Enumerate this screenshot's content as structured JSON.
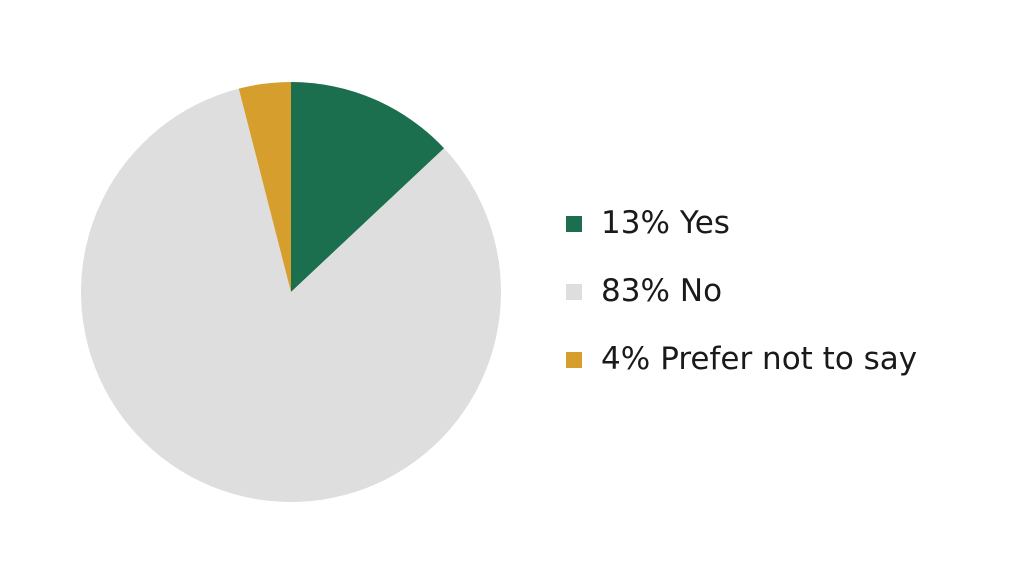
{
  "chart_data": {
    "type": "pie",
    "categories": [
      "Yes",
      "No",
      "Prefer not to say"
    ],
    "values": [
      13,
      83,
      4
    ],
    "value_labels": [
      "13%",
      "83%",
      "4%"
    ],
    "colors": [
      "#1b6e4e",
      "#dedede",
      "#d69e2d"
    ],
    "legend": "right"
  }
}
